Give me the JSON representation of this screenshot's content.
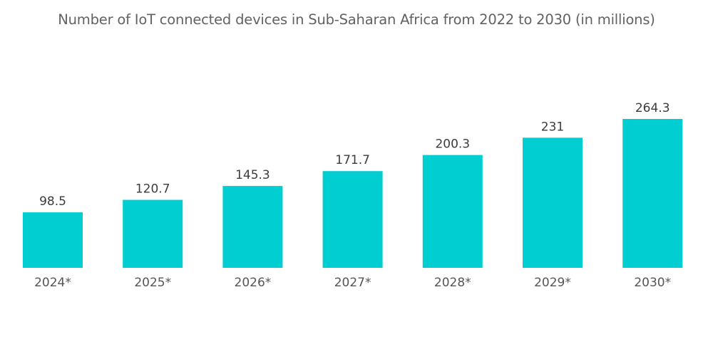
{
  "chart_data": {
    "type": "bar",
    "title": "Number of IoT connected devices in Sub-Saharan Africa from 2022 to 2030 (in millions)",
    "xlabel": "",
    "ylabel": "",
    "categories": [
      "2024*",
      "2025*",
      "2026*",
      "2027*",
      "2028*",
      "2029*",
      "2030*"
    ],
    "values": [
      98.5,
      120.7,
      145.3,
      171.7,
      200.3,
      231,
      264.3
    ],
    "value_labels": [
      "98.5",
      "120.7",
      "145.3",
      "171.7",
      "200.3",
      "231",
      "264.3"
    ],
    "ylim": [
      0,
      264.3
    ],
    "grid": false,
    "legend": "none",
    "bar_color": "#00ced1"
  }
}
